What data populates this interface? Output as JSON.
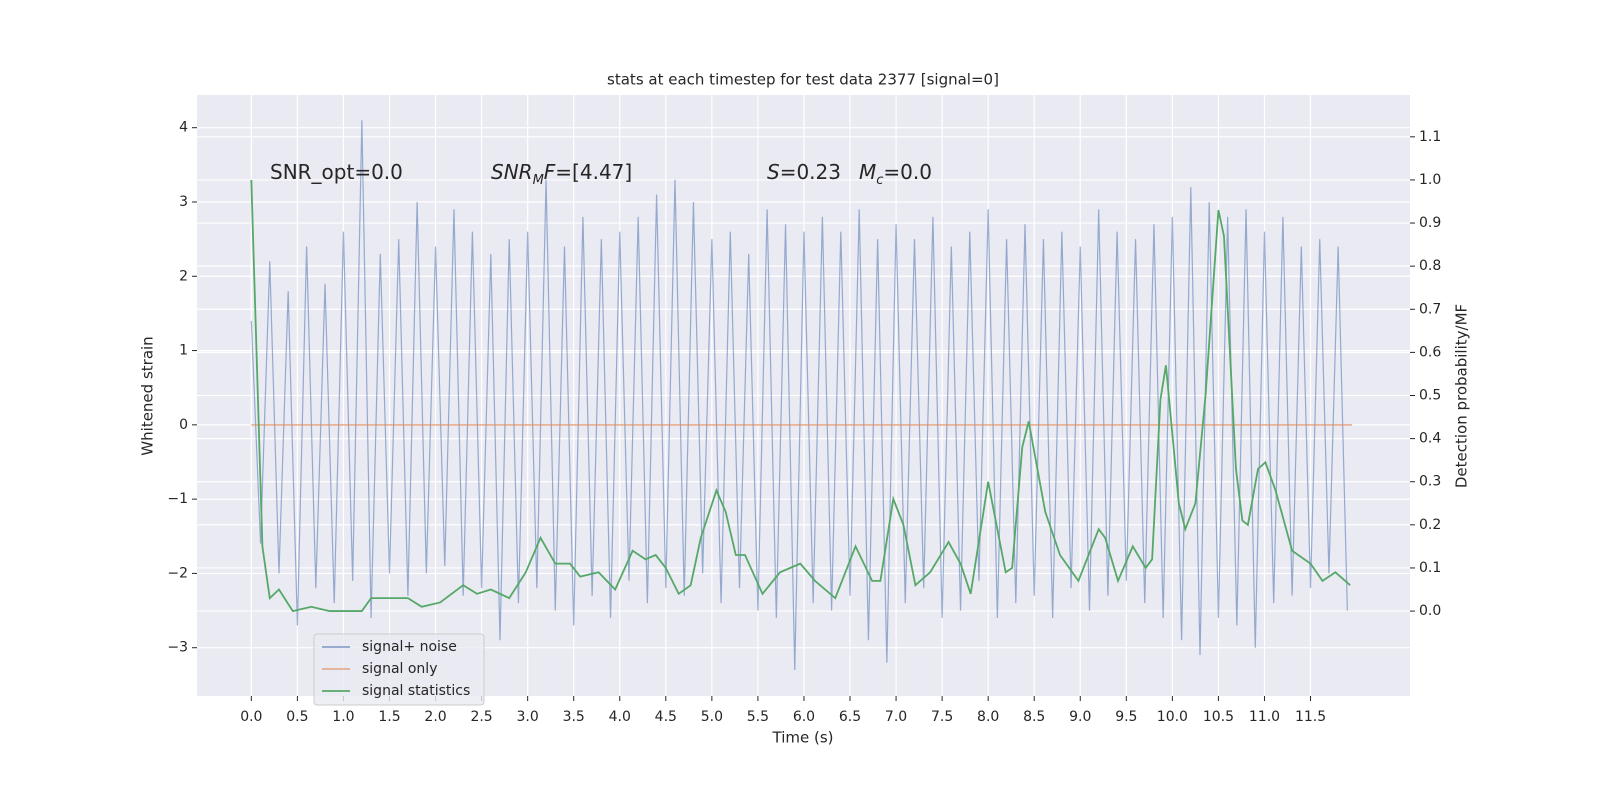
{
  "chart_data": {
    "type": "line",
    "title": "stats at each timestep for test data 2377 [signal=0]",
    "xlabel": "Time (s)",
    "ylabel": "Whitened strain",
    "y2label": "Detection probability/MF",
    "xlim": [
      -0.59,
      12.58
    ],
    "ylim": [
      -3.65,
      4.44
    ],
    "y2lim": [
      -0.197,
      1.197
    ],
    "xticks": [
      {
        "value": 0,
        "label": "0.0"
      },
      0.5,
      {
        "value": 1,
        "label": "1.0"
      },
      1.5,
      {
        "value": 2,
        "label": "2.0"
      },
      2.5,
      {
        "value": 3,
        "label": "3.0"
      },
      3.5,
      {
        "value": 4,
        "label": "4.0"
      },
      4.5,
      {
        "value": 5,
        "label": "5.0"
      },
      5.5,
      {
        "value": 6,
        "label": "6.0"
      },
      6.5,
      {
        "value": 7,
        "label": "7.0"
      },
      7.5,
      {
        "value": 8,
        "label": "8.0"
      },
      8.5,
      {
        "value": 9,
        "label": "9.0"
      },
      9.5,
      {
        "value": 10,
        "label": "10.0"
      },
      10.5,
      {
        "value": 11,
        "label": "11.0"
      },
      11.5
    ],
    "yticks": [
      {
        "value": -3,
        "label": "−3"
      },
      {
        "value": -2,
        "label": "−2"
      },
      {
        "value": -1,
        "label": "−1"
      },
      0,
      1,
      2,
      3,
      4
    ],
    "y2ticks": [
      {
        "value": 0,
        "label": "0.0"
      },
      0.1,
      0.2,
      0.3,
      0.4,
      0.5,
      0.6,
      0.7,
      0.8,
      0.9,
      {
        "value": 1,
        "label": "1.0"
      },
      1.1
    ],
    "grid": true,
    "legend": "lower left",
    "annotations": [
      [
        {
          "text": "SNR_opt=0.0"
        }
      ],
      [
        {
          "text": "SNR",
          "italic": true
        },
        {
          "text": "M",
          "italic": true,
          "sub": true
        },
        {
          "text": "F",
          "italic": true
        },
        {
          "text": "=[4.47]"
        }
      ],
      [
        {
          "text": "S",
          "italic": true
        },
        {
          "text": "=0.23"
        }
      ],
      [
        {
          "text": "M",
          "italic": true
        },
        {
          "text": "c",
          "italic": true,
          "sub": true
        },
        {
          "text": "=0.0"
        }
      ]
    ],
    "series": [
      {
        "name": "signal+ noise",
        "color": "#4c72b0",
        "axis": "y",
        "x": [
          0,
          0.1,
          0.2,
          0.3,
          0.4,
          0.5,
          0.6,
          0.7,
          0.8,
          0.9,
          1,
          1.1,
          1.2,
          1.3,
          1.4,
          1.5,
          1.6,
          1.7,
          1.8,
          1.9,
          2,
          2.1,
          2.2,
          2.3,
          2.4,
          2.5,
          2.6,
          2.7,
          2.8,
          2.9,
          3,
          3.1,
          3.2,
          3.3,
          3.4,
          3.5,
          3.6,
          3.7,
          3.8,
          3.9,
          4,
          4.1,
          4.2,
          4.3,
          4.4,
          4.5,
          4.6,
          4.7,
          4.8,
          4.9,
          5,
          5.1,
          5.2,
          5.3,
          5.4,
          5.5,
          5.6,
          5.7,
          5.8,
          5.9,
          6,
          6.1,
          6.2,
          6.3,
          6.4,
          6.5,
          6.6,
          6.7,
          6.8,
          6.9,
          7,
          7.1,
          7.2,
          7.3,
          7.4,
          7.5,
          7.6,
          7.7,
          7.8,
          7.9,
          8,
          8.1,
          8.2,
          8.3,
          8.4,
          8.5,
          8.6,
          8.7,
          8.8,
          8.9,
          9,
          9.1,
          9.2,
          9.3,
          9.4,
          9.5,
          9.6,
          9.7,
          9.8,
          9.9,
          10,
          10.1,
          10.2,
          10.3,
          10.4,
          10.5,
          10.6,
          10.7,
          10.8,
          10.9,
          11,
          11.1,
          11.2,
          11.3,
          11.4,
          11.5,
          11.6,
          11.7,
          11.8,
          11.9
        ],
        "values": [
          1.4,
          -1.6,
          2.2,
          -2.0,
          1.8,
          -2.7,
          2.4,
          -2.2,
          1.9,
          -2.4,
          2.6,
          -2.1,
          4.1,
          -2.6,
          2.3,
          -2.0,
          2.5,
          -2.3,
          3.0,
          -2.0,
          2.4,
          -1.9,
          2.9,
          -2.3,
          2.6,
          -2.2,
          2.3,
          -2.9,
          2.5,
          -2.4,
          2.6,
          -2.2,
          3.3,
          -2.5,
          2.4,
          -2.7,
          2.8,
          -2.3,
          2.5,
          -2.6,
          2.6,
          -2.1,
          2.8,
          -2.4,
          3.1,
          -2.2,
          3.3,
          -2.3,
          3.0,
          -2.0,
          2.5,
          -2.4,
          2.6,
          -2.2,
          2.3,
          -2.5,
          2.9,
          -2.6,
          2.7,
          -3.3,
          2.6,
          -2.4,
          2.8,
          -2.5,
          2.6,
          -2.3,
          2.9,
          -2.9,
          2.5,
          -3.2,
          2.7,
          -2.4,
          2.5,
          -2.2,
          2.8,
          -2.6,
          2.4,
          -2.5,
          2.6,
          -2.1,
          2.9,
          -2.6,
          2.5,
          -2.4,
          2.7,
          -2.3,
          2.5,
          -2.6,
          2.6,
          -2.2,
          2.4,
          -2.5,
          2.9,
          -2.3,
          2.6,
          -2.1,
          2.5,
          -2.4,
          2.7,
          -2.6,
          2.8,
          -2.9,
          3.2,
          -3.1,
          3.0,
          -2.6,
          2.8,
          -2.7,
          2.9,
          -3.0,
          2.6,
          -2.4,
          2.8,
          -2.3,
          2.4,
          -2.2,
          2.5,
          -2.0,
          2.4,
          -2.5
        ]
      },
      {
        "name": "signal only",
        "color": "#dd8452",
        "axis": "y",
        "x": [
          0,
          11.95
        ],
        "values": [
          0,
          0
        ]
      },
      {
        "name": "signal statistics",
        "color": "#55a868",
        "axis": "y2",
        "x": [
          0,
          0.12,
          0.2,
          0.3,
          0.45,
          0.65,
          0.85,
          1.2,
          1.3,
          1.5,
          1.7,
          1.85,
          2.05,
          2.3,
          2.45,
          2.6,
          2.8,
          2.98,
          3.14,
          3.3,
          3.46,
          3.57,
          3.77,
          3.95,
          4.14,
          4.28,
          4.39,
          4.5,
          4.64,
          4.77,
          4.88,
          5.05,
          5.15,
          5.26,
          5.36,
          5.55,
          5.74,
          5.96,
          6.12,
          6.34,
          6.56,
          6.74,
          6.83,
          6.97,
          7.08,
          7.21,
          7.37,
          7.57,
          7.7,
          7.81,
          8,
          8.19,
          8.26,
          8.37,
          8.44,
          8.62,
          8.78,
          8.98,
          9.2,
          9.27,
          9.41,
          9.57,
          9.71,
          9.78,
          9.87,
          9.93,
          10.07,
          10.14,
          10.25,
          10.36,
          10.5,
          10.56,
          10.69,
          10.76,
          10.82,
          10.93,
          11.01,
          11.12,
          11.3,
          11.5,
          11.63,
          11.77,
          11.93
        ],
        "values": [
          1.0,
          0.15,
          0.03,
          0.05,
          0.0,
          0.01,
          0.0,
          0.0,
          0.03,
          0.03,
          0.03,
          0.01,
          0.02,
          0.06,
          0.04,
          0.05,
          0.03,
          0.09,
          0.17,
          0.11,
          0.11,
          0.08,
          0.09,
          0.05,
          0.14,
          0.12,
          0.13,
          0.1,
          0.04,
          0.06,
          0.17,
          0.28,
          0.23,
          0.13,
          0.13,
          0.04,
          0.09,
          0.11,
          0.07,
          0.03,
          0.15,
          0.07,
          0.07,
          0.26,
          0.2,
          0.06,
          0.09,
          0.16,
          0.11,
          0.04,
          0.3,
          0.09,
          0.1,
          0.38,
          0.44,
          0.23,
          0.13,
          0.07,
          0.19,
          0.17,
          0.07,
          0.15,
          0.1,
          0.12,
          0.49,
          0.57,
          0.25,
          0.19,
          0.25,
          0.5,
          0.93,
          0.87,
          0.33,
          0.21,
          0.2,
          0.33,
          0.345,
          0.28,
          0.14,
          0.11,
          0.07,
          0.09,
          0.06
        ]
      }
    ]
  }
}
